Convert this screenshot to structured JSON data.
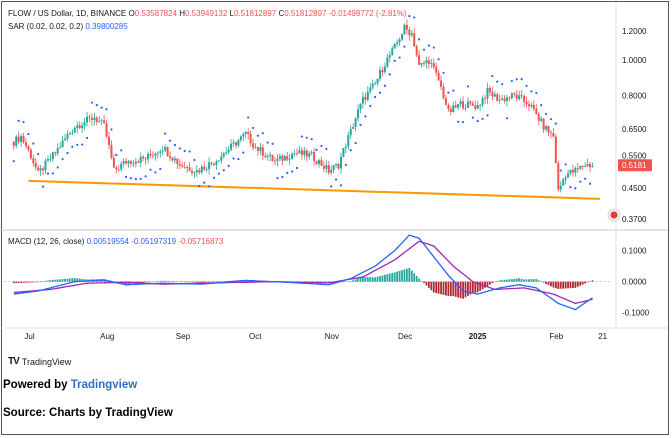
{
  "header": {
    "symbol": "FLOW / US Dollar, 1D, BINANCE",
    "o_label": "O",
    "o_value": "0.53587824",
    "h_label": "H",
    "h_value": "0.53949132",
    "l_label": "L",
    "l_value": "0.51812897",
    "c_label": "C",
    "c_value": "0.51812897",
    "change": "-0.01498772 (-2.81%)",
    "sar_label": "SAR (0.02, 0.02, 0.2)",
    "sar_value": "0.39800285",
    "macd_label": "MACD (12, 26, close)",
    "macd_hist": "0.00519554",
    "macd_line": "-0.05197319",
    "macd_signal": "-0.05716873"
  },
  "footer": {
    "tv_logo": "TradingView",
    "powered_prefix": "Powered by ",
    "powered_brand": "Tradingview",
    "source": "Source: Charts by TradingView"
  },
  "colors": {
    "up": "#26a69a",
    "down": "#ef5350",
    "sar": "#2962ff",
    "trendline": "#ff9800",
    "macd": "#2962ff",
    "signal": "#9c27b0",
    "hist_up": "#26a69a",
    "hist_down": "#b22833",
    "last_price_bg": "#ef5350"
  },
  "chart_data": {
    "type": "candlestick",
    "x_tick_labels": [
      "Jul",
      "Aug",
      "Sep",
      "Oct",
      "Nov",
      "Dec",
      "2025",
      "Feb",
      "21"
    ],
    "price_axis_labels": [
      "1.2000",
      "1.0000",
      "0.8000",
      "0.6500",
      "0.5500",
      "0.4500",
      "0.3700"
    ],
    "last_price_label": "0.5181",
    "macd_axis_labels": [
      "0.1000",
      "0.0000",
      "-0.1000"
    ],
    "price_scale": "log",
    "price_range": [
      0.35,
      1.3
    ],
    "macd_range": [
      -0.13,
      0.16
    ],
    "trendline": {
      "start": [
        "Jul 1",
        0.47
      ],
      "end": [
        "Feb 20",
        0.42
      ]
    },
    "price_keypoints": [
      [
        "Jun 25",
        0.6
      ],
      [
        "Jun 28",
        0.62
      ],
      [
        "Jul 2",
        0.55
      ],
      [
        "Jul 5",
        0.49
      ],
      [
        "Jul 12",
        0.56
      ],
      [
        "Jul 20",
        0.66
      ],
      [
        "Jul 28",
        0.7
      ],
      [
        "Aug 1",
        0.66
      ],
      [
        "Aug 5",
        0.5
      ],
      [
        "Aug 10",
        0.53
      ],
      [
        "Aug 18",
        0.54
      ],
      [
        "Aug 25",
        0.58
      ],
      [
        "Sep 1",
        0.52
      ],
      [
        "Sep 8",
        0.5
      ],
      [
        "Sep 15",
        0.53
      ],
      [
        "Sep 22",
        0.58
      ],
      [
        "Sep 28",
        0.63
      ],
      [
        "Oct 2",
        0.58
      ],
      [
        "Oct 10",
        0.53
      ],
      [
        "Oct 18",
        0.56
      ],
      [
        "Oct 25",
        0.55
      ],
      [
        "Nov 1",
        0.5
      ],
      [
        "Nov 5",
        0.52
      ],
      [
        "Nov 10",
        0.64
      ],
      [
        "Nov 15",
        0.78
      ],
      [
        "Nov 20",
        0.86
      ],
      [
        "Nov 24",
        0.98
      ],
      [
        "Nov 28",
        1.08
      ],
      [
        "Dec 2",
        1.22
      ],
      [
        "Dec 5",
        1.18
      ],
      [
        "Dec 8",
        0.96
      ],
      [
        "Dec 12",
        1.0
      ],
      [
        "Dec 16",
        0.88
      ],
      [
        "Dec 20",
        0.72
      ],
      [
        "Dec 25",
        0.76
      ],
      [
        "Jan 1",
        0.75
      ],
      [
        "Jan 5",
        0.82
      ],
      [
        "Jan 10",
        0.78
      ],
      [
        "Jan 16",
        0.8
      ],
      [
        "Jan 22",
        0.76
      ],
      [
        "Jan 28",
        0.66
      ],
      [
        "Feb 1",
        0.62
      ],
      [
        "Feb 3",
        0.44
      ],
      [
        "Feb 6",
        0.49
      ],
      [
        "Feb 10",
        0.5
      ],
      [
        "Feb 14",
        0.52
      ],
      [
        "Feb 17",
        0.518
      ]
    ],
    "macd_line_keypoints": [
      [
        "Jun 25",
        -0.04
      ],
      [
        "Jul 5",
        -0.03
      ],
      [
        "Jul 20",
        0.0
      ],
      [
        "Aug 1",
        0.005
      ],
      [
        "Aug 10",
        -0.01
      ],
      [
        "Aug 25",
        -0.005
      ],
      [
        "Sep 10",
        -0.008
      ],
      [
        "Sep 28",
        0.004
      ],
      [
        "Oct 15",
        -0.002
      ],
      [
        "Nov 1",
        -0.01
      ],
      [
        "Nov 10",
        0.01
      ],
      [
        "Nov 20",
        0.05
      ],
      [
        "Nov 28",
        0.1
      ],
      [
        "Dec 4",
        0.15
      ],
      [
        "Dec 8",
        0.14
      ],
      [
        "Dec 14",
        0.08
      ],
      [
        "Dec 20",
        0.02
      ],
      [
        "Dec 26",
        -0.03
      ],
      [
        "Jan 1",
        -0.04
      ],
      [
        "Jan 10",
        -0.02
      ],
      [
        "Jan 18",
        -0.01
      ],
      [
        "Jan 25",
        -0.02
      ],
      [
        "Feb 3",
        -0.07
      ],
      [
        "Feb 10",
        -0.09
      ],
      [
        "Feb 17",
        -0.052
      ]
    ],
    "signal_keypoints": [
      [
        "Jun 25",
        -0.035
      ],
      [
        "Jul 10",
        -0.025
      ],
      [
        "Jul 25",
        -0.005
      ],
      [
        "Aug 10",
        -0.002
      ],
      [
        "Aug 25",
        -0.008
      ],
      [
        "Sep 15",
        -0.004
      ],
      [
        "Oct 10",
        0.0
      ],
      [
        "Nov 1",
        -0.004
      ],
      [
        "Nov 15",
        0.015
      ],
      [
        "Nov 28",
        0.07
      ],
      [
        "Dec 8",
        0.13
      ],
      [
        "Dec 14",
        0.115
      ],
      [
        "Dec 22",
        0.05
      ],
      [
        "Dec 30",
        0.0
      ],
      [
        "Jan 8",
        -0.025
      ],
      [
        "Jan 20",
        -0.02
      ],
      [
        "Feb 1",
        -0.04
      ],
      [
        "Feb 10",
        -0.07
      ],
      [
        "Feb 17",
        -0.057
      ]
    ]
  }
}
